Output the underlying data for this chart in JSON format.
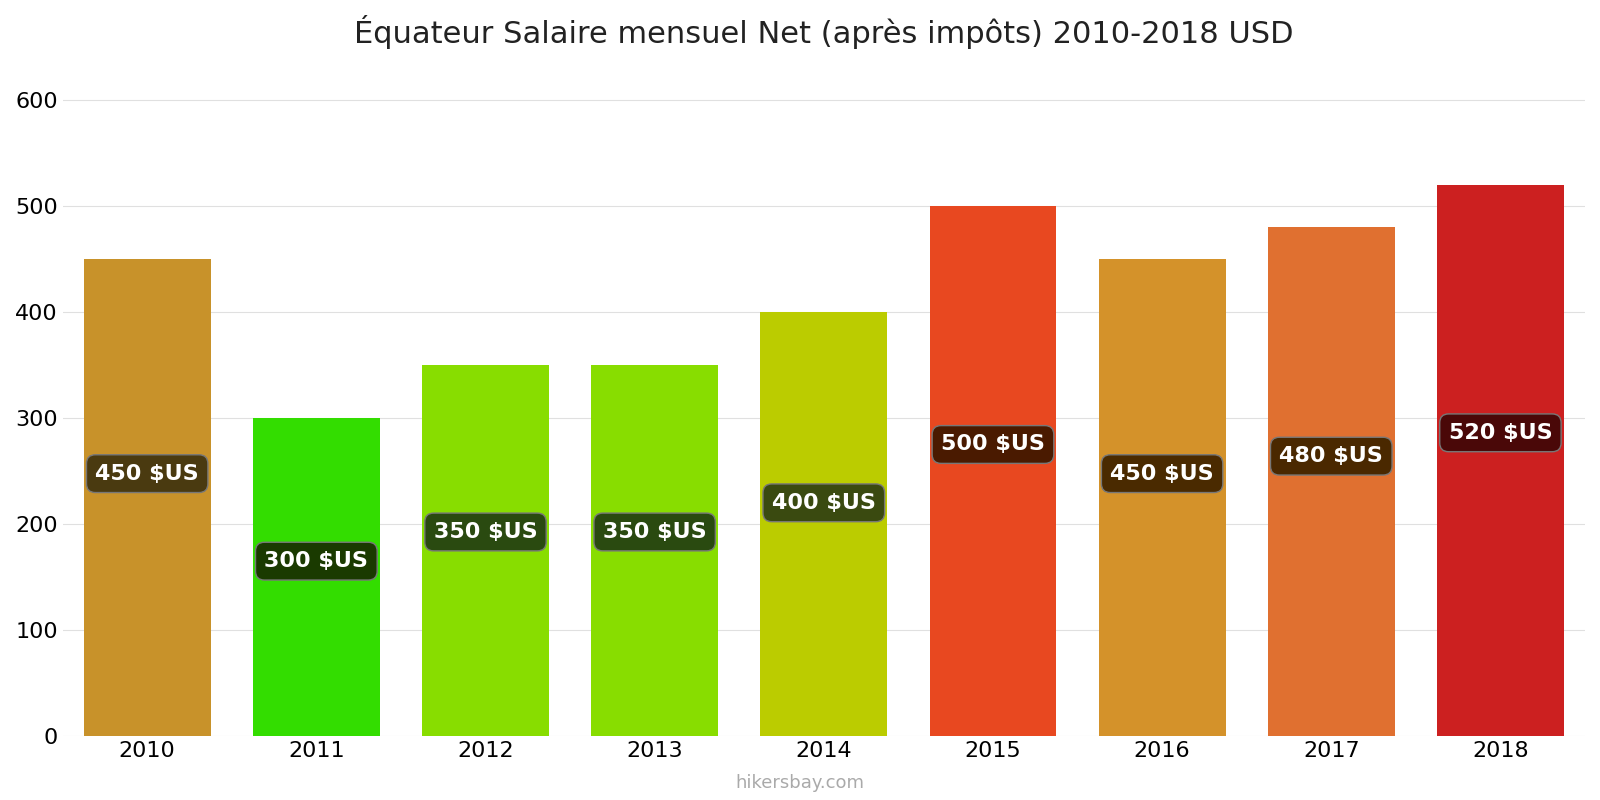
{
  "years": [
    2010,
    2011,
    2012,
    2013,
    2014,
    2015,
    2016,
    2017,
    2018
  ],
  "values": [
    450,
    300,
    350,
    350,
    400,
    500,
    450,
    480,
    520
  ],
  "bar_colors": [
    "#C8922A",
    "#33DD00",
    "#88DD00",
    "#88DD00",
    "#BBCC00",
    "#E84820",
    "#D4922A",
    "#E07030",
    "#CC2020"
  ],
  "label_bg_colors": [
    "#4a3a10",
    "#1a3a00",
    "#2a4a10",
    "#2a4a10",
    "#3a4a10",
    "#4a1a00",
    "#4a2a00",
    "#4a2800",
    "#4a0808"
  ],
  "labels": [
    "450 $US",
    "300 $US",
    "350 $US",
    "350 $US",
    "400 $US",
    "500 $US",
    "450 $US",
    "480 $US",
    "520 $US"
  ],
  "title": "Équateur Salaire mensuel Net (après impôts) 2010-2018 USD",
  "ylabel_ticks": [
    0,
    100,
    200,
    300,
    400,
    500,
    600
  ],
  "ylim": [
    0,
    630
  ],
  "watermark": "hikersbay.com",
  "bg_color": "#ffffff",
  "title_fontsize": 22,
  "tick_fontsize": 16,
  "label_fontsize": 16
}
